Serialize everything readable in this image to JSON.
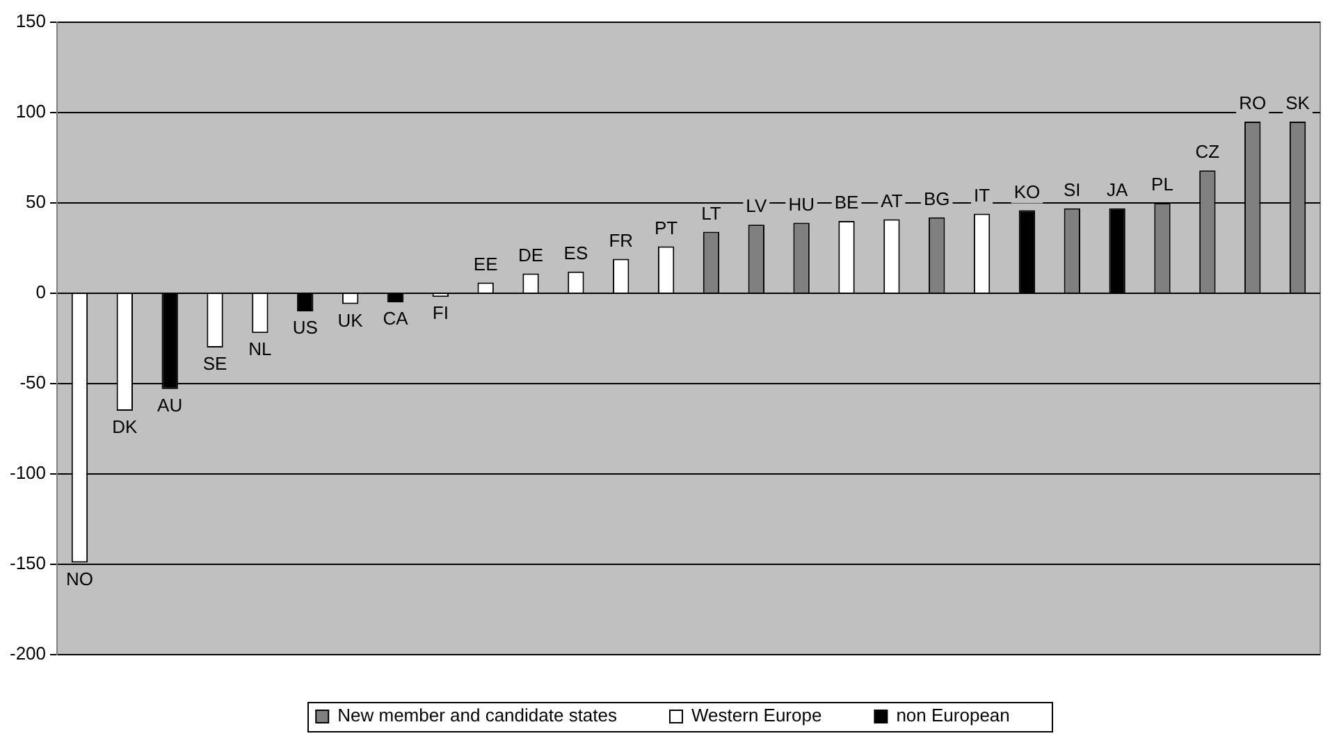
{
  "chart_data": {
    "type": "bar",
    "categories": [
      "NO",
      "DK",
      "AU",
      "SE",
      "NL",
      "US",
      "UK",
      "CA",
      "FI",
      "EE",
      "DE",
      "ES",
      "FR",
      "PT",
      "LT",
      "LV",
      "HU",
      "BE",
      "AT",
      "BG",
      "IT",
      "KO",
      "SI",
      "JA",
      "PL",
      "CZ",
      "RO",
      "SK"
    ],
    "series": [
      {
        "name": "New member and candidate states",
        "color": "#808080",
        "values": [
          null,
          null,
          null,
          null,
          null,
          null,
          null,
          null,
          null,
          null,
          null,
          null,
          null,
          null,
          34,
          38,
          39,
          null,
          null,
          42,
          null,
          null,
          47,
          null,
          50,
          68,
          95,
          95
        ]
      },
      {
        "name": "Western Europe",
        "color": "#ffffff",
        "values": [
          -149,
          -65,
          null,
          -30,
          -22,
          null,
          -6,
          null,
          -2,
          6,
          11,
          12,
          19,
          26,
          null,
          null,
          null,
          40,
          41,
          null,
          44,
          null,
          null,
          null,
          null,
          null,
          null,
          null
        ]
      },
      {
        "name": "non European",
        "color": "#000000",
        "values": [
          null,
          null,
          -53,
          null,
          null,
          -10,
          null,
          -5,
          null,
          null,
          null,
          null,
          null,
          null,
          null,
          null,
          null,
          null,
          null,
          null,
          null,
          46,
          null,
          47,
          null,
          null,
          null,
          null
        ]
      }
    ],
    "ylim": [
      -200,
      150
    ],
    "yticks": [
      -200,
      -150,
      -100,
      -50,
      0,
      50,
      100,
      150
    ],
    "grid": "y",
    "legend": "bottom",
    "tick_labels": "y"
  }
}
